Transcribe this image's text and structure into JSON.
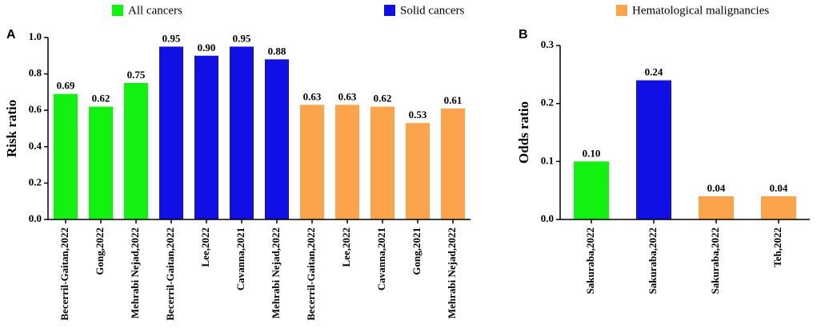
{
  "legend": [
    {
      "name": "All cancers",
      "color": "#11f211"
    },
    {
      "name": "Solid cancers",
      "color": "#1010e6"
    },
    {
      "name": "Hematological malignancies",
      "color": "#fba44c"
    }
  ],
  "chart_data": [
    {
      "type": "bar",
      "panel": "A",
      "ylabel": "Risk ratio",
      "categories": [
        "Becerril-Gaitan,2022",
        "Gong,2022",
        "Mehrabi Nejad,2022",
        "Becerril-Gaitan,2022",
        "Lee,2022",
        "Cavanna,2021",
        "Mehrabi Nejad,2022",
        "Becerril-Gaitan,2022",
        "Lee,2022",
        "Cavanna,2021",
        "Gong,2021",
        "Mehrabi Nejad,2022"
      ],
      "values": [
        0.69,
        0.62,
        0.75,
        0.95,
        0.9,
        0.95,
        0.88,
        0.63,
        0.63,
        0.62,
        0.53,
        0.61
      ],
      "value_labels": [
        "0.69",
        "0.62",
        "0.75",
        "0.95",
        "0.90",
        "0.95",
        "0.88",
        "0.63",
        "0.63",
        "0.62",
        "0.53",
        "0.61"
      ],
      "colors": [
        "#11f211",
        "#11f211",
        "#11f211",
        "#1010e6",
        "#1010e6",
        "#1010e6",
        "#1010e6",
        "#fba44c",
        "#fba44c",
        "#fba44c",
        "#fba44c",
        "#fba44c"
      ],
      "ylim": [
        0,
        1.0
      ],
      "yticks": [
        {
          "value": 0,
          "label": "0.0"
        },
        {
          "value": 0.2,
          "label": "0.2"
        },
        {
          "value": 0.4,
          "label": "0.4"
        },
        {
          "value": 0.6,
          "label": "0.6"
        },
        {
          "value": 0.8,
          "label": "0.8"
        },
        {
          "value": 1.0,
          "label": "1.0"
        }
      ]
    },
    {
      "type": "bar",
      "panel": "B",
      "ylabel": "Odds ratio",
      "categories": [
        "Sakuraba,2022",
        "Sakuraba,2022",
        "Sakuraba,2022",
        "Teh,2022"
      ],
      "values": [
        0.1,
        0.24,
        0.04,
        0.04
      ],
      "value_labels": [
        "0.10",
        "0.24",
        "0.04",
        "0.04"
      ],
      "colors": [
        "#11f211",
        "#1010e6",
        "#fba44c",
        "#fba44c"
      ],
      "ylim": [
        0,
        0.3
      ],
      "yticks": [
        {
          "value": 0,
          "label": "0.0"
        },
        {
          "value": 0.1,
          "label": "0.1"
        },
        {
          "value": 0.2,
          "label": "0.2"
        },
        {
          "value": 0.3,
          "label": "0.3"
        }
      ]
    }
  ]
}
